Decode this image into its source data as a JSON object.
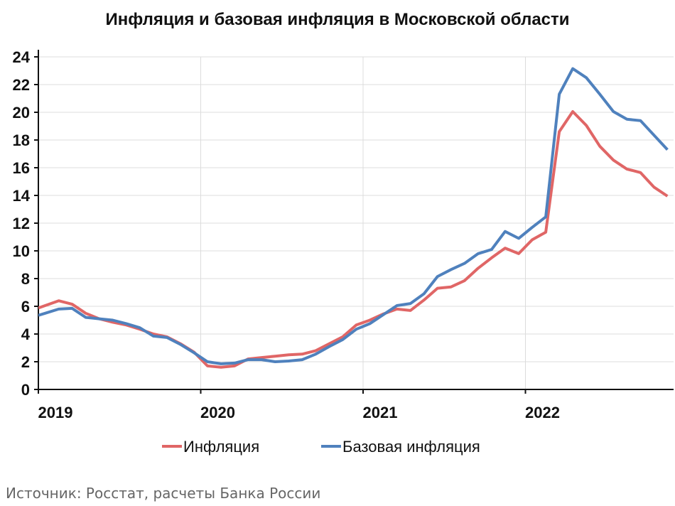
{
  "chart_data": {
    "type": "line",
    "title": "Инфляция и базовая инфляция в Московской области",
    "xlabel": "",
    "ylabel": "",
    "ylim": [
      0,
      24
    ],
    "yticks": [
      "0",
      "2",
      "4",
      "6",
      "8",
      "10",
      "12",
      "14",
      "16",
      "18",
      "20",
      "22",
      "24"
    ],
    "xticks": [
      "2019",
      "2020",
      "2021",
      "2022"
    ],
    "grid": true,
    "legend_position": "bottom",
    "x": [
      "2019-01",
      "2019-02",
      "2019-03",
      "2019-04",
      "2019-05",
      "2019-06",
      "2019-07",
      "2019-08",
      "2019-09",
      "2019-10",
      "2019-11",
      "2019-12",
      "2020-01",
      "2020-02",
      "2020-03",
      "2020-04",
      "2020-05",
      "2020-06",
      "2020-07",
      "2020-08",
      "2020-09",
      "2020-10",
      "2020-11",
      "2020-12",
      "2021-01",
      "2021-02",
      "2021-03",
      "2021-04",
      "2021-05",
      "2021-06",
      "2021-07",
      "2021-08",
      "2021-09",
      "2021-10",
      "2021-11",
      "2021-12",
      "2022-01",
      "2022-02",
      "2022-03",
      "2022-04",
      "2022-05",
      "2022-06",
      "2022-07",
      "2022-08",
      "2022-09",
      "2022-10",
      "2022-11"
    ],
    "series": [
      {
        "name": "Инфляция",
        "color": "#e06666",
        "values": [
          6.05,
          6.4,
          6.15,
          5.5,
          5.1,
          4.85,
          4.65,
          4.35,
          4.0,
          3.8,
          3.3,
          2.7,
          1.7,
          1.6,
          1.7,
          2.2,
          2.3,
          2.4,
          2.5,
          2.55,
          2.8,
          3.3,
          3.8,
          4.65,
          5.0,
          5.45,
          5.8,
          5.7,
          6.45,
          7.3,
          7.4,
          7.85,
          8.75,
          9.5,
          10.2,
          9.8,
          10.8,
          11.35,
          18.6,
          20.05,
          19.05,
          17.55,
          16.55,
          15.9,
          15.65,
          14.6,
          13.95
        ]
      },
      {
        "name": "Базовая инфляция",
        "color": "#4f81bd",
        "values": [
          5.5,
          5.8,
          5.85,
          5.2,
          5.1,
          5.0,
          4.75,
          4.45,
          3.85,
          3.75,
          3.25,
          2.65,
          2.0,
          1.85,
          1.9,
          2.15,
          2.15,
          2.0,
          2.05,
          2.15,
          2.55,
          3.1,
          3.6,
          4.35,
          4.75,
          5.4,
          6.05,
          6.2,
          6.9,
          8.15,
          8.65,
          9.1,
          9.8,
          10.1,
          11.4,
          10.9,
          11.7,
          12.45,
          21.3,
          23.15,
          22.5,
          21.3,
          20.05,
          19.5,
          19.4,
          18.35,
          17.3
        ]
      }
    ]
  },
  "source": "Источник: Росстат, расчеты Банка России"
}
